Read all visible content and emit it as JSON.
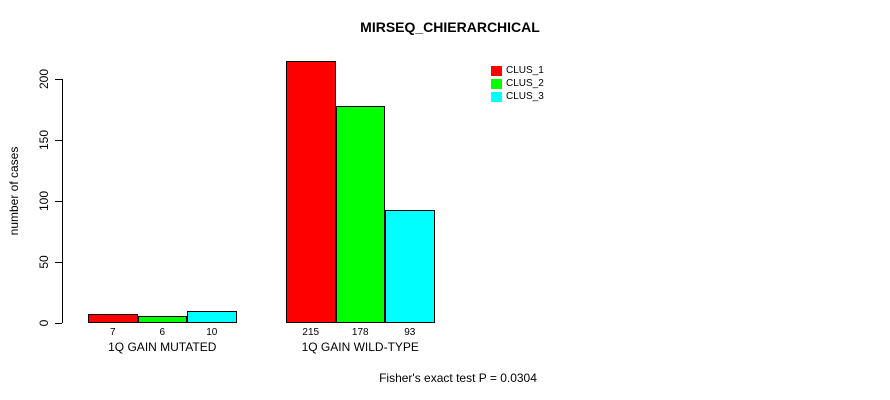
{
  "chart_data": {
    "type": "bar",
    "title": "MIRSEQ_CHIERARCHICAL",
    "ylabel": "number of cases",
    "xlabel": "",
    "categories": [
      "1Q GAIN MUTATED",
      "1Q GAIN WILD-TYPE"
    ],
    "series": [
      {
        "name": "CLUS_1",
        "color": "#ff0000",
        "values": [
          7,
          215
        ]
      },
      {
        "name": "CLUS_2",
        "color": "#00ff00",
        "values": [
          6,
          178
        ]
      },
      {
        "name": "CLUS_3",
        "color": "#00ffff",
        "values": [
          10,
          93
        ]
      }
    ],
    "yticks": [
      0,
      50,
      100,
      150,
      200
    ],
    "ylim": [
      0,
      200
    ],
    "grid": false,
    "legend_position": "top-right",
    "bar_value_labels": [
      "7",
      "6",
      "10",
      "215",
      "178",
      "93"
    ],
    "annotation": "Fisher's exact test P = 0.0304"
  }
}
